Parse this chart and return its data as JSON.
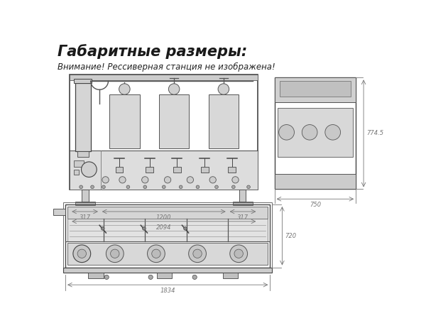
{
  "title": "Габаритные размеры:",
  "subtitle": "Внимание! Рессиверная станция не изображена!",
  "title_fontsize": 15,
  "subtitle_fontsize": 8.5,
  "bg_color": "#ffffff",
  "line_color": "#555555",
  "dim_color": "#777777",
  "dim_fontsize": 6,
  "front_view_dim_317_1": "317",
  "front_view_dim_1200": "1200",
  "front_view_dim_317_2": "317",
  "front_view_dim_2094": "2094",
  "side_view_dim_h": "774.5",
  "side_view_dim_w": "750",
  "top_view_dim_w": "1834",
  "top_view_dim_h": "720"
}
